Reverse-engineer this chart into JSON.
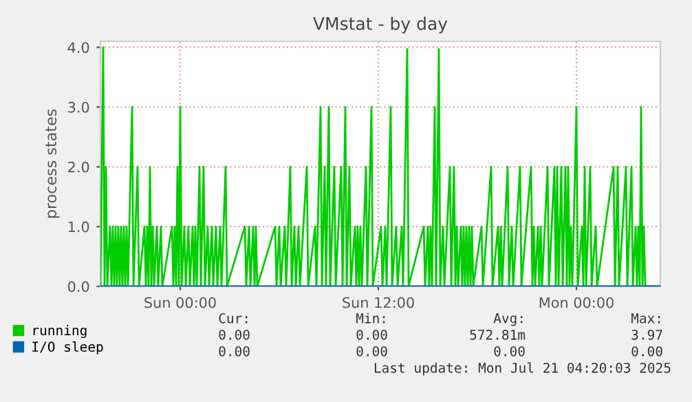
{
  "chart_data": {
    "type": "line",
    "title": "VMstat - by day",
    "ylabel": "process states",
    "xlim": [
      "2025-07-19T19:10",
      "2025-07-21T05:05"
    ],
    "xticks": [
      {
        "value": "2025-07-20T00:00",
        "label": "Sun 00:00"
      },
      {
        "value": "2025-07-20T12:00",
        "label": "Sun 12:00"
      },
      {
        "value": "2025-07-21T00:00",
        "label": "Mon 00:00"
      }
    ],
    "ylim": [
      0,
      4.1
    ],
    "yticks": [
      {
        "value": 0,
        "label": "0.0"
      },
      {
        "value": 1,
        "label": "1.0"
      },
      {
        "value": 2,
        "label": "2.0"
      },
      {
        "value": 3,
        "label": "3.0"
      },
      {
        "value": 4,
        "label": "4.0"
      }
    ],
    "grid": true,
    "legend": "bottom",
    "line_style": "solid",
    "series": [
      {
        "name": "running",
        "color": "#00cc00",
        "x": [
          "2025-07-19T19:10",
          "2025-07-19T19:20",
          "2025-07-19T19:25",
          "2025-07-19T19:30",
          "2025-07-19T19:35",
          "2025-07-19T19:45",
          "2025-07-19T19:50",
          "2025-07-19T19:55",
          "2025-07-19T20:00",
          "2025-07-19T20:05",
          "2025-07-19T20:10",
          "2025-07-19T20:15",
          "2025-07-19T20:20",
          "2025-07-19T20:25",
          "2025-07-19T20:30",
          "2025-07-19T20:35",
          "2025-07-19T20:40",
          "2025-07-19T20:45",
          "2025-07-19T20:50",
          "2025-07-19T21:05",
          "2025-07-19T21:10",
          "2025-07-19T21:25",
          "2025-07-19T21:30",
          "2025-07-19T21:50",
          "2025-07-19T21:55",
          "2025-07-19T22:00",
          "2025-07-19T22:05",
          "2025-07-19T22:10",
          "2025-07-19T22:15",
          "2025-07-19T22:20",
          "2025-07-19T22:25",
          "2025-07-19T22:35",
          "2025-07-19T22:40",
          "2025-07-19T22:50",
          "2025-07-19T22:55",
          "2025-07-19T23:30",
          "2025-07-19T23:35",
          "2025-07-19T23:40",
          "2025-07-19T23:45",
          "2025-07-19T23:50",
          "2025-07-19T23:55",
          "2025-07-20T00:00",
          "2025-07-20T00:05",
          "2025-07-20T00:15",
          "2025-07-20T00:20",
          "2025-07-20T00:30",
          "2025-07-20T00:35",
          "2025-07-20T00:45",
          "2025-07-20T00:50",
          "2025-07-20T00:55",
          "2025-07-20T01:00",
          "2025-07-20T01:10",
          "2025-07-20T01:15",
          "2025-07-20T01:25",
          "2025-07-20T01:30",
          "2025-07-20T01:40",
          "2025-07-20T01:45",
          "2025-07-20T01:55",
          "2025-07-20T02:00",
          "2025-07-20T02:10",
          "2025-07-20T02:15",
          "2025-07-20T02:25",
          "2025-07-20T02:30",
          "2025-07-20T02:45",
          "2025-07-20T02:50",
          "2025-07-20T03:55",
          "2025-07-20T04:00",
          "2025-07-20T04:10",
          "2025-07-20T04:15",
          "2025-07-20T04:25",
          "2025-07-20T04:30",
          "2025-07-20T04:35",
          "2025-07-20T04:40",
          "2025-07-20T05:45",
          "2025-07-20T05:50",
          "2025-07-20T06:00",
          "2025-07-20T06:05",
          "2025-07-20T06:20",
          "2025-07-20T06:25",
          "2025-07-20T06:40",
          "2025-07-20T06:45",
          "2025-07-20T06:55",
          "2025-07-20T07:00",
          "2025-07-20T07:10",
          "2025-07-20T07:15",
          "2025-07-20T07:40",
          "2025-07-20T07:45",
          "2025-07-20T08:10",
          "2025-07-20T08:15",
          "2025-07-20T08:30",
          "2025-07-20T08:35",
          "2025-07-20T08:45",
          "2025-07-20T08:50",
          "2025-07-20T09:00",
          "2025-07-20T09:05",
          "2025-07-20T09:20",
          "2025-07-20T09:25",
          "2025-07-20T09:45",
          "2025-07-20T09:50",
          "2025-07-20T10:00",
          "2025-07-20T10:05",
          "2025-07-20T10:15",
          "2025-07-20T10:20",
          "2025-07-20T10:35",
          "2025-07-20T10:40",
          "2025-07-20T10:45",
          "2025-07-20T10:50",
          "2025-07-20T10:55",
          "2025-07-20T11:00",
          "2025-07-20T11:15",
          "2025-07-20T11:20",
          "2025-07-20T11:35",
          "2025-07-20T11:40",
          "2025-07-20T12:10",
          "2025-07-20T12:15",
          "2025-07-20T12:25",
          "2025-07-20T12:30",
          "2025-07-20T12:45",
          "2025-07-20T12:50",
          "2025-07-20T13:05",
          "2025-07-20T13:10",
          "2025-07-20T13:25",
          "2025-07-20T13:30",
          "2025-07-20T13:45",
          "2025-07-20T13:50",
          "2025-07-20T14:45",
          "2025-07-20T14:50",
          "2025-07-20T15:00",
          "2025-07-20T15:05",
          "2025-07-20T15:10",
          "2025-07-20T15:15",
          "2025-07-20T15:25",
          "2025-07-20T15:30",
          "2025-07-20T15:40",
          "2025-07-20T15:45",
          "2025-07-20T15:55",
          "2025-07-20T16:00",
          "2025-07-20T16:20",
          "2025-07-20T16:25",
          "2025-07-20T16:35",
          "2025-07-20T16:40",
          "2025-07-20T16:45",
          "2025-07-20T16:50",
          "2025-07-20T17:00",
          "2025-07-20T17:05",
          "2025-07-20T17:10",
          "2025-07-20T17:15",
          "2025-07-20T17:20",
          "2025-07-20T17:25",
          "2025-07-20T17:30",
          "2025-07-20T17:35",
          "2025-07-20T17:40",
          "2025-07-20T17:45",
          "2025-07-20T18:15",
          "2025-07-20T18:20",
          "2025-07-20T18:50",
          "2025-07-20T18:55",
          "2025-07-20T19:15",
          "2025-07-20T19:20",
          "2025-07-20T19:25",
          "2025-07-20T19:30",
          "2025-07-20T19:50",
          "2025-07-20T19:55",
          "2025-07-20T20:05",
          "2025-07-20T20:10",
          "2025-07-20T20:35",
          "2025-07-20T20:40",
          "2025-07-20T21:15",
          "2025-07-20T21:20",
          "2025-07-20T21:25",
          "2025-07-20T21:30",
          "2025-07-20T21:40",
          "2025-07-20T21:45",
          "2025-07-20T21:50",
          "2025-07-20T21:55",
          "2025-07-20T22:15",
          "2025-07-20T22:20",
          "2025-07-20T22:40",
          "2025-07-20T22:45",
          "2025-07-20T22:50",
          "2025-07-20T22:55",
          "2025-07-20T23:05",
          "2025-07-20T23:10",
          "2025-07-20T23:20",
          "2025-07-20T23:25",
          "2025-07-20T23:30",
          "2025-07-20T23:35",
          "2025-07-20T23:40",
          "2025-07-20T23:45",
          "2025-07-21T00:00",
          "2025-07-21T00:05",
          "2025-07-21T00:20",
          "2025-07-21T00:25",
          "2025-07-21T00:30",
          "2025-07-21T00:35",
          "2025-07-21T00:50",
          "2025-07-21T00:55",
          "2025-07-21T01:10",
          "2025-07-21T01:15",
          "2025-07-21T02:15",
          "2025-07-21T02:20",
          "2025-07-21T02:30",
          "2025-07-21T02:35",
          "2025-07-21T03:00",
          "2025-07-21T03:05",
          "2025-07-21T03:20",
          "2025-07-21T03:25",
          "2025-07-21T03:35",
          "2025-07-21T03:40",
          "2025-07-21T03:45",
          "2025-07-21T03:50",
          "2025-07-21T03:55",
          "2025-07-21T04:00",
          "2025-07-21T04:05",
          "2025-07-21T04:10",
          "2025-07-21T05:05"
        ],
        "values": [
          0,
          4,
          0,
          2,
          0,
          1,
          0,
          1,
          0,
          1,
          0,
          1,
          0,
          1,
          0,
          1,
          0,
          1,
          0,
          3,
          0,
          2,
          0,
          1,
          0,
          1,
          0,
          2,
          0,
          1,
          0,
          1,
          0,
          1,
          0,
          1,
          0,
          1,
          0,
          2,
          0,
          3,
          0,
          1,
          0,
          1,
          0,
          1,
          0,
          1,
          0,
          2,
          0,
          2,
          0,
          1,
          0,
          1,
          0,
          1,
          0,
          1,
          0,
          2,
          0,
          1,
          0,
          1,
          0,
          1,
          0,
          1,
          0,
          1,
          0,
          1,
          0,
          1,
          0,
          2,
          0,
          1,
          0,
          1,
          0,
          2,
          0,
          1,
          0,
          3,
          0,
          2,
          0,
          3,
          0,
          2,
          0,
          2,
          0,
          3,
          0,
          2,
          0,
          1,
          0,
          1,
          0,
          1,
          0,
          2,
          0,
          3,
          0,
          1,
          0,
          1,
          0,
          3,
          0,
          1,
          0,
          1,
          0,
          3.97,
          0,
          1,
          0,
          1,
          0,
          1,
          0,
          3,
          0,
          3.97,
          0,
          1,
          0,
          2,
          0,
          2,
          0,
          1,
          0,
          1,
          0,
          1,
          0,
          1,
          0,
          1,
          0,
          1,
          0,
          1,
          0,
          2,
          0,
          1,
          0,
          1,
          0,
          2,
          0,
          1,
          0,
          2,
          0,
          2,
          0,
          1,
          0,
          1,
          0,
          1,
          0,
          2,
          0,
          2,
          0,
          2,
          0,
          2,
          0,
          2,
          0,
          2,
          0,
          1,
          0,
          3,
          0,
          1,
          0,
          2,
          0,
          2,
          0,
          1,
          0,
          2,
          0,
          2,
          0,
          2,
          0,
          2,
          0,
          1,
          0,
          1,
          0,
          3,
          0,
          1,
          0,
          0
        ]
      },
      {
        "name": "I/O sleep",
        "color": "#0066b3",
        "x": [
          "2025-07-19T19:10",
          "2025-07-21T05:05"
        ],
        "values": [
          0,
          0
        ]
      }
    ],
    "annotations": [
      "Cur:",
      "Min:",
      "Avg:",
      "Max:",
      "0.00",
      "0.00",
      "572.81m",
      "3.97",
      "0.00",
      "0.00",
      "0.00",
      "0.00",
      "Last update: Mon Jul 21 04:20:03 2025"
    ]
  }
}
